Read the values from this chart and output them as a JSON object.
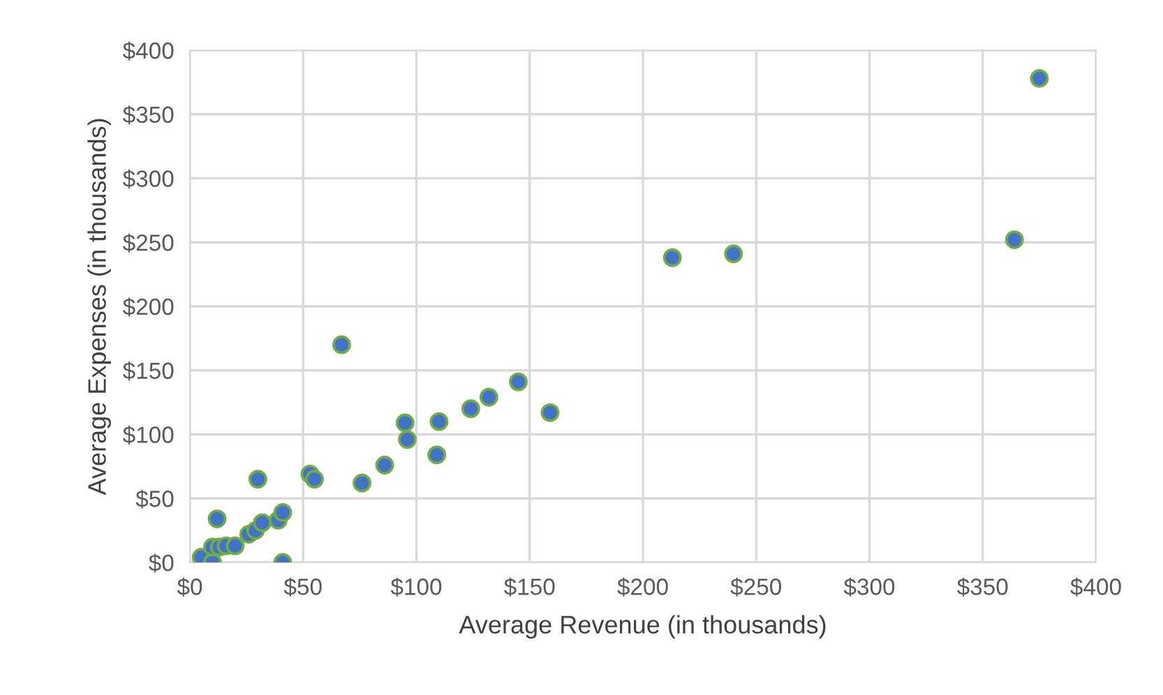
{
  "chart_data": {
    "type": "scatter",
    "xlabel": "Average Revenue (in thousands)",
    "ylabel": "Average Expenses (in thousands)",
    "x": [
      5,
      10,
      12,
      10,
      13,
      16,
      20,
      30,
      26,
      29,
      32,
      39,
      41,
      41,
      53,
      55,
      67,
      76,
      86,
      96,
      95,
      109,
      110,
      124,
      132,
      145,
      159,
      213,
      240,
      364,
      375
    ],
    "series": [
      {
        "color": "#4472c4",
        "values": [
          4,
          0,
          34,
          12,
          12,
          13,
          13,
          65,
          22,
          25,
          31,
          33,
          39,
          0,
          69,
          65,
          170,
          62,
          76,
          96,
          109,
          84,
          110,
          120,
          129,
          141,
          117,
          238,
          241,
          252,
          378
        ]
      }
    ],
    "xlim": [
      0,
      400
    ],
    "ylim": [
      0,
      400
    ],
    "xticks": [
      {
        "value": 0,
        "label": "$0"
      },
      {
        "value": 50,
        "label": "$50"
      },
      {
        "value": 100,
        "label": "$100"
      },
      {
        "value": 150,
        "label": "$150"
      },
      {
        "value": 200,
        "label": "$200"
      },
      {
        "value": 250,
        "label": "$250"
      },
      {
        "value": 300,
        "label": "$300"
      },
      {
        "value": 350,
        "label": "$350"
      },
      {
        "value": 400,
        "label": "$400"
      }
    ],
    "yticks": [
      {
        "value": 0,
        "label": "$0"
      },
      {
        "value": 50,
        "label": "$50"
      },
      {
        "value": 100,
        "label": "$100"
      },
      {
        "value": 150,
        "label": "$150"
      },
      {
        "value": 200,
        "label": "$200"
      },
      {
        "value": 250,
        "label": "$250"
      },
      {
        "value": 300,
        "label": "$300"
      },
      {
        "value": 350,
        "label": "$350"
      },
      {
        "value": 400,
        "label": "$400"
      }
    ],
    "grid": true,
    "marker": "circle"
  }
}
